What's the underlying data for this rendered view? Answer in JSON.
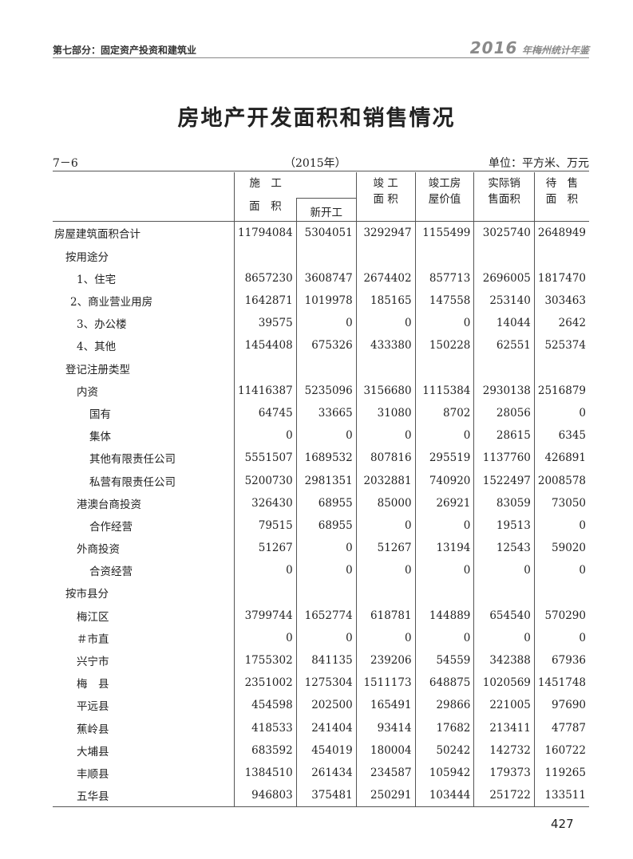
{
  "running_header": {
    "section": "第七部分：固定资产投资和建筑业",
    "year": "2016",
    "book": "年梅州统计年鉴"
  },
  "title": "房地产开发面积和销售情况",
  "table_code": "7－6",
  "table_year": "（2015年）",
  "unit": "单位：平方米、万元",
  "columns": {
    "c1_line1": "施　工",
    "c1_line2": "面　积",
    "c2": "新开工",
    "c3_line1": "竣 工",
    "c3_line2": "面 积",
    "c4_line1": "竣工房",
    "c4_line2": "屋价值",
    "c5_line1": "实际销",
    "c5_line2": "售面积",
    "c6_line1": "待　售",
    "c6_line2": "面　积"
  },
  "rows": [
    {
      "label": "房屋建筑面积合计",
      "level": 0,
      "values": [
        "11794084",
        "5304051",
        "3292947",
        "1155499",
        "3025740",
        "2648949"
      ]
    },
    {
      "label": "按用途分",
      "level": 1,
      "values": [
        "",
        "",
        "",
        "",
        "",
        ""
      ]
    },
    {
      "label": "1、住宅",
      "level": 2,
      "values": [
        "8657230",
        "3608747",
        "2674402",
        "857713",
        "2696005",
        "1817470"
      ]
    },
    {
      "label": "2、商业营业用房",
      "level": 1.5,
      "values": [
        "1642871",
        "1019978",
        "185165",
        "147558",
        "253140",
        "303463"
      ]
    },
    {
      "label": "3、办公楼",
      "level": 2,
      "values": [
        "39575",
        "0",
        "0",
        "0",
        "14044",
        "2642"
      ]
    },
    {
      "label": "4、其他",
      "level": 2,
      "values": [
        "1454408",
        "675326",
        "433380",
        "150228",
        "62551",
        "525374"
      ]
    },
    {
      "label": "登记注册类型",
      "level": 1,
      "values": [
        "",
        "",
        "",
        "",
        "",
        ""
      ]
    },
    {
      "label": "内资",
      "level": 2,
      "values": [
        "11416387",
        "5235096",
        "3156680",
        "1115384",
        "2930138",
        "2516879"
      ]
    },
    {
      "label": "国有",
      "level": 3,
      "values": [
        "64745",
        "33665",
        "31080",
        "8702",
        "28056",
        "0"
      ]
    },
    {
      "label": "集体",
      "level": 3,
      "values": [
        "0",
        "0",
        "0",
        "0",
        "28615",
        "6345"
      ]
    },
    {
      "label": "其他有限责任公司",
      "level": 3,
      "values": [
        "5551507",
        "1689532",
        "807816",
        "295519",
        "1137760",
        "426891"
      ]
    },
    {
      "label": "私营有限责任公司",
      "level": 3,
      "values": [
        "5200730",
        "2981351",
        "2032881",
        "740920",
        "1522497",
        "2008578"
      ]
    },
    {
      "label": "港澳台商投资",
      "level": 2,
      "values": [
        "326430",
        "68955",
        "85000",
        "26921",
        "83059",
        "73050"
      ]
    },
    {
      "label": "合作经营",
      "level": 3,
      "values": [
        "79515",
        "68955",
        "0",
        "0",
        "19513",
        "0"
      ]
    },
    {
      "label": "外商投资",
      "level": 2,
      "values": [
        "51267",
        "0",
        "51267",
        "13194",
        "12543",
        "59020"
      ]
    },
    {
      "label": "合资经营",
      "level": 3,
      "values": [
        "0",
        "0",
        "0",
        "0",
        "0",
        "0"
      ]
    },
    {
      "label": "按市县分",
      "level": 1,
      "values": [
        "",
        "",
        "",
        "",
        "",
        ""
      ]
    },
    {
      "label": "梅江区",
      "level": 2,
      "values": [
        "3799744",
        "1652774",
        "618781",
        "144889",
        "654540",
        "570290"
      ]
    },
    {
      "label": "＃市直",
      "level": 2,
      "values": [
        "0",
        "0",
        "0",
        "0",
        "0",
        "0"
      ]
    },
    {
      "label": "兴宁市",
      "level": 2,
      "values": [
        "1755302",
        "841135",
        "239206",
        "54559",
        "342388",
        "67936"
      ]
    },
    {
      "label": "梅　县",
      "level": 2,
      "values": [
        "2351002",
        "1275304",
        "1511173",
        "648875",
        "1020569",
        "1451748"
      ]
    },
    {
      "label": "平远县",
      "level": 2,
      "values": [
        "454598",
        "202500",
        "165491",
        "29866",
        "221005",
        "97690"
      ]
    },
    {
      "label": "蕉岭县",
      "level": 2,
      "values": [
        "418533",
        "241404",
        "93414",
        "17682",
        "213411",
        "47787"
      ]
    },
    {
      "label": "大埔县",
      "level": 2,
      "values": [
        "683592",
        "454019",
        "180004",
        "50242",
        "142732",
        "160722"
      ]
    },
    {
      "label": "丰顺县",
      "level": 2,
      "values": [
        "1384510",
        "261434",
        "234587",
        "105942",
        "179373",
        "119265"
      ]
    },
    {
      "label": "五华县",
      "level": 2,
      "values": [
        "946803",
        "375481",
        "250291",
        "103444",
        "251722",
        "133511"
      ]
    }
  ],
  "page_number": "427"
}
